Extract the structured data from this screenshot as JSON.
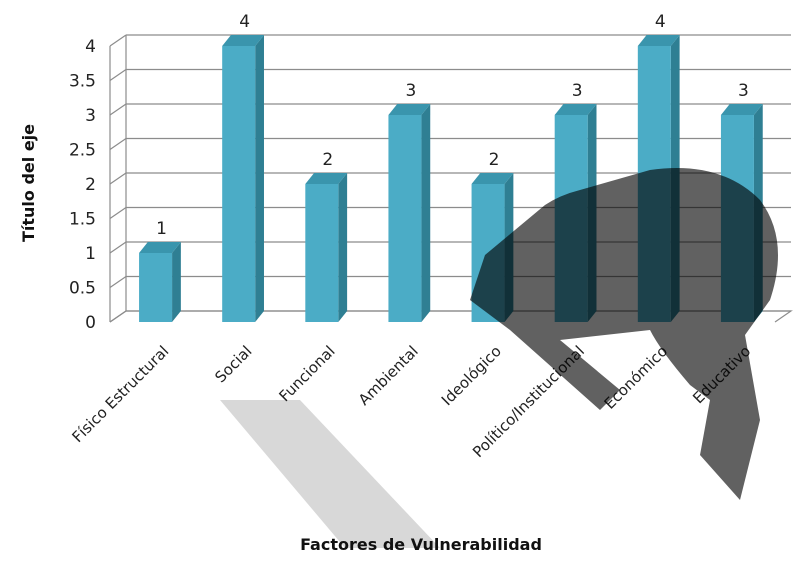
{
  "chart_data": {
    "type": "bar",
    "style": "3d-column",
    "categories": [
      "Físico Estructural",
      "Social",
      "Funcional",
      "Ambiental",
      "Ideológico",
      "Político/Institucional",
      "Económico",
      "Educativo"
    ],
    "values": [
      1,
      4,
      2,
      3,
      2,
      3,
      4,
      3
    ],
    "data_labels": [
      "1",
      "4",
      "2",
      "3",
      "2",
      "3",
      "4",
      "3"
    ],
    "yticks": [
      "0",
      "0.5",
      "1",
      "1.5",
      "2",
      "2.5",
      "3",
      "3.5",
      "4"
    ],
    "ylim": [
      0,
      4
    ],
    "xlabel": "Factores de Vulnerabilidad",
    "ylabel": "Título del eje",
    "grid": true,
    "colors": {
      "bar_front": "#4bacc6",
      "bar_side": "#2f7f93",
      "bar_top": "#3a95ad",
      "grid": "#8c8c8c",
      "watermark": "#000000"
    }
  }
}
